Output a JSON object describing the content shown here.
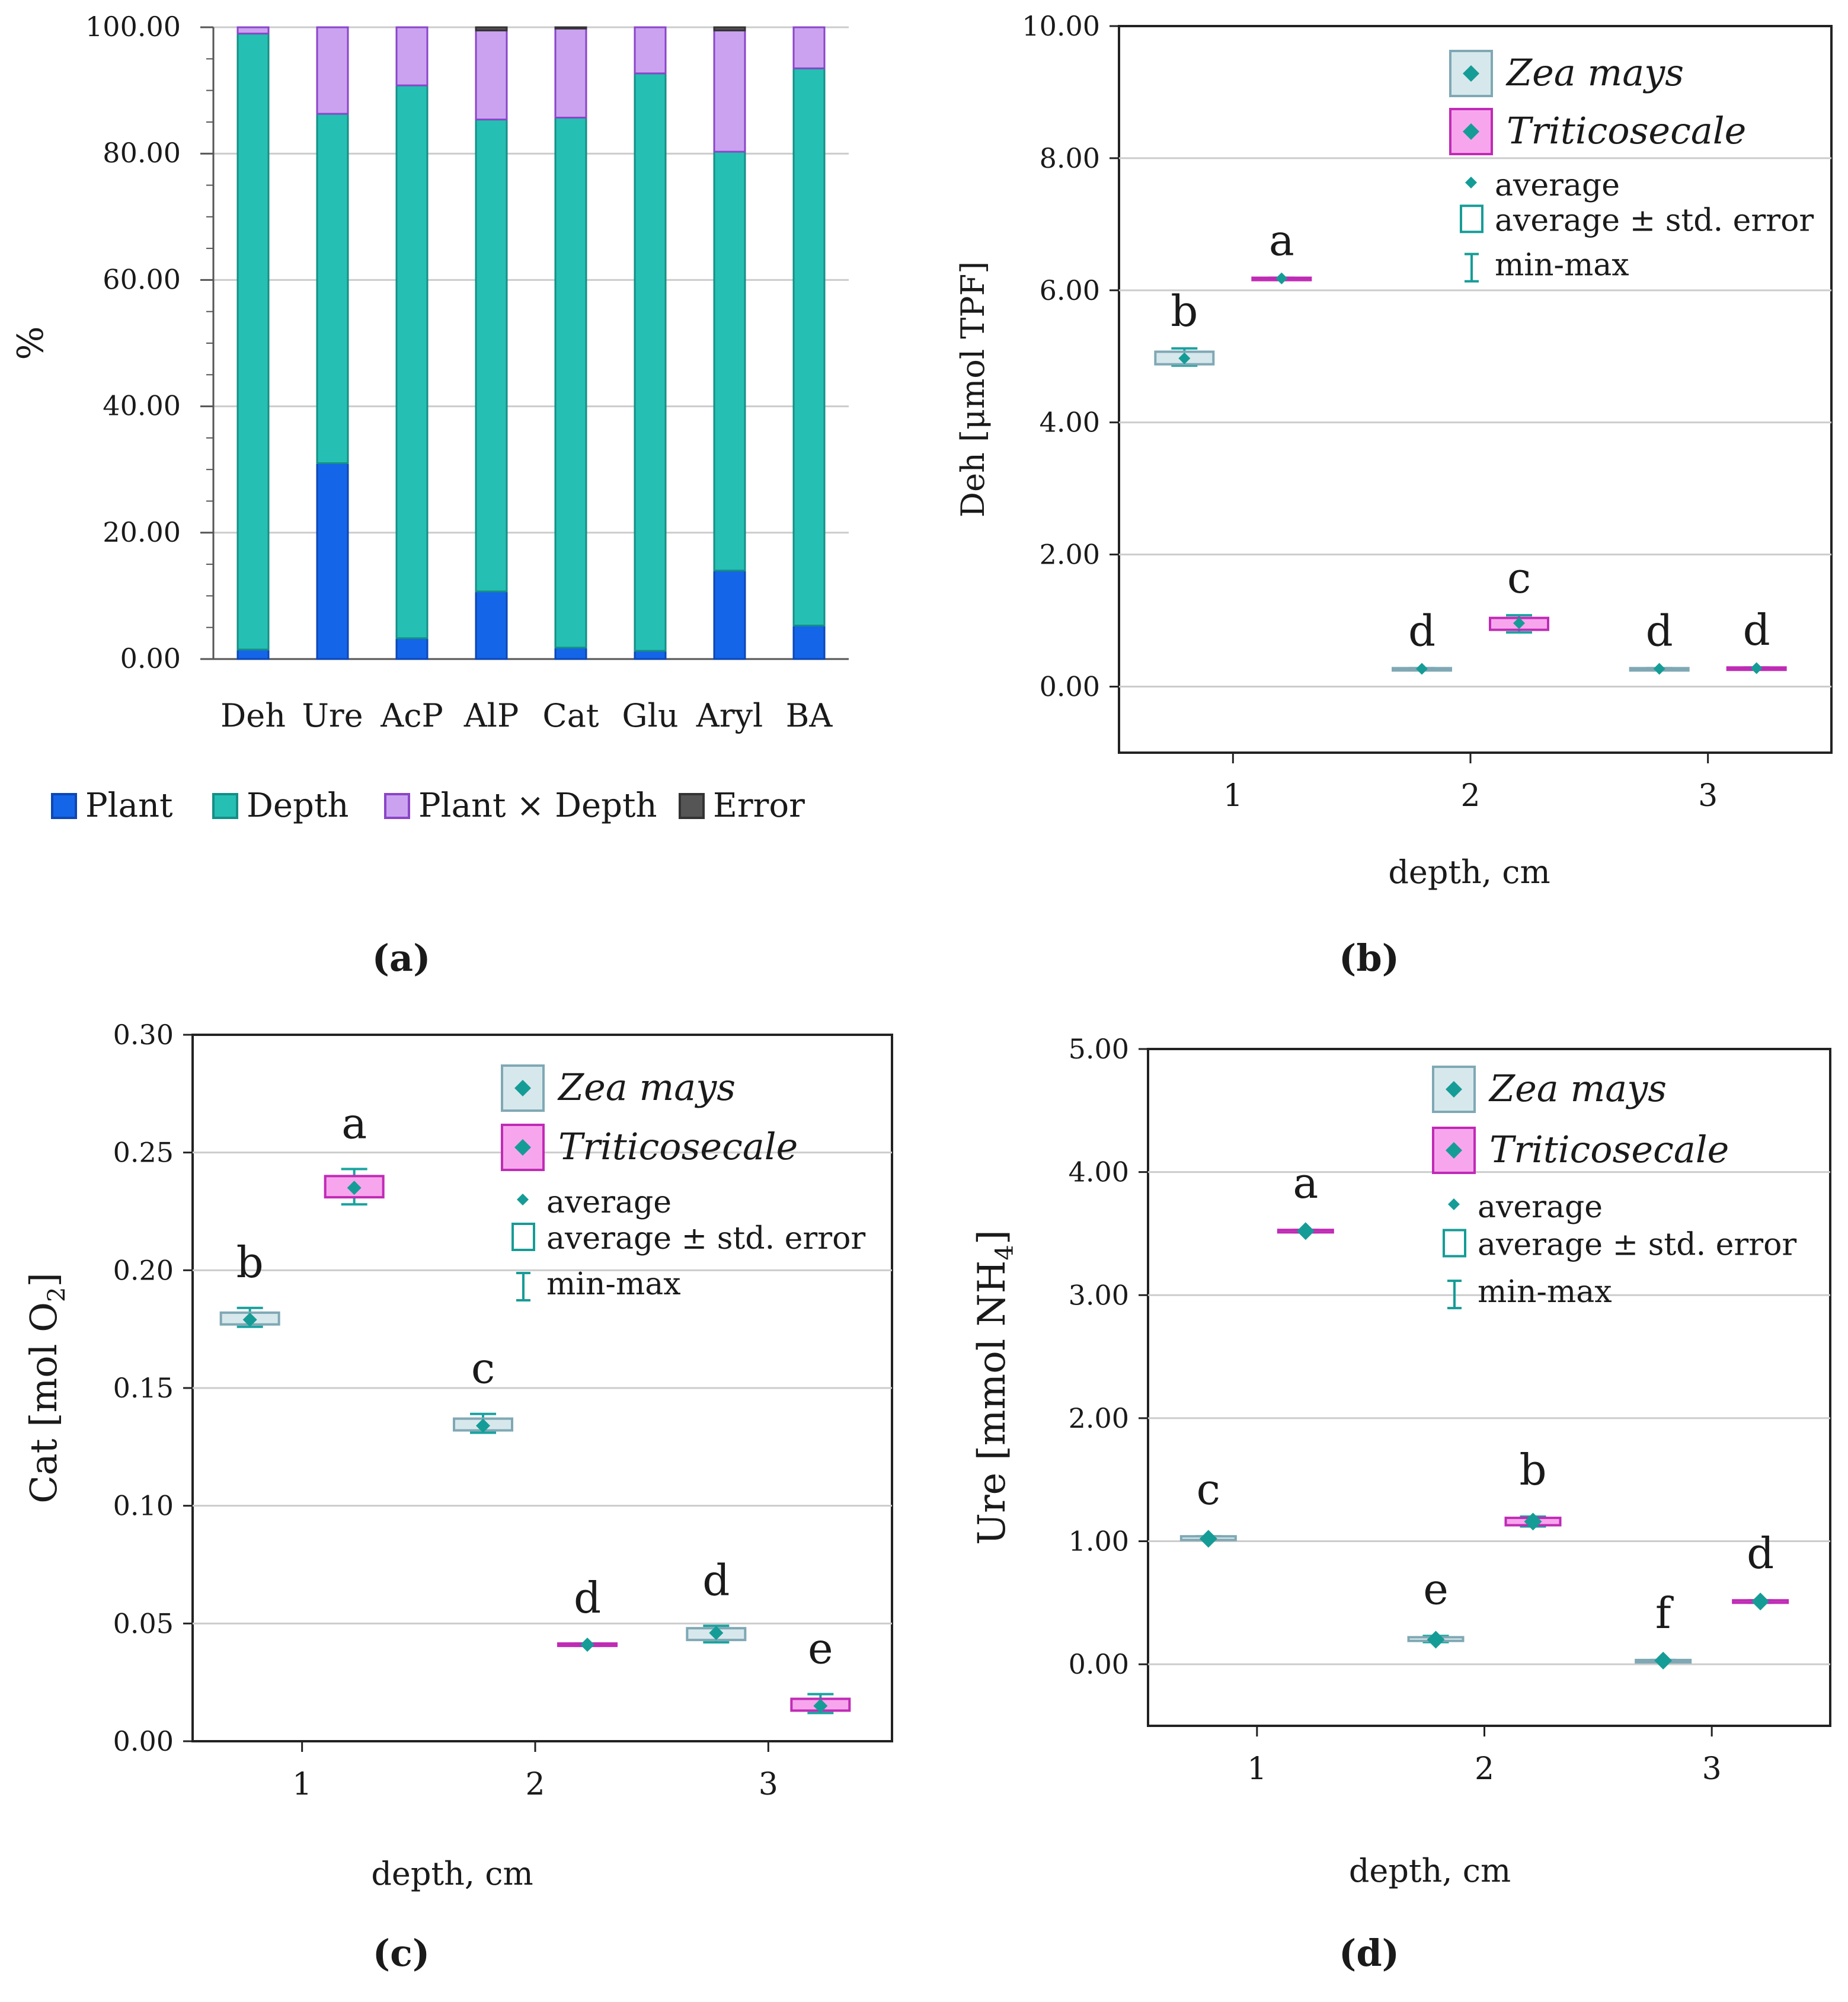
{
  "colors": {
    "plant": "#1565e8",
    "depth": "#26bfb3",
    "interaction": "#cba2f0",
    "error": "#555555",
    "zea_fill": "#d7e8ec",
    "zea_stroke": "#7fa8b4",
    "trit_fill": "#f7a6ee",
    "trit_stroke": "#c02bb5",
    "marker": "#169c96",
    "whisker": "#1aa3a0",
    "grid": "#cccccc"
  },
  "chart_data": [
    {
      "id": "a",
      "type": "bar",
      "stacked": true,
      "caption": "a",
      "ylabel": "%",
      "ylim": [
        0,
        100
      ],
      "yticks": [
        "0.00",
        "20.00",
        "40.00",
        "60.00",
        "80.00",
        "100.00"
      ],
      "categories": [
        "Deh",
        "Ure",
        "AcP",
        "AlP",
        "Cat",
        "Glu",
        "Aryl",
        "BA"
      ],
      "series": [
        {
          "name": "Plant",
          "key": "plant",
          "values": [
            1.5,
            31,
            3.3,
            10.7,
            1.8,
            1.3,
            14,
            5.3
          ]
        },
        {
          "name": "Depth",
          "key": "depth",
          "values": [
            97.5,
            55.3,
            87.5,
            74.7,
            83.9,
            91.4,
            66.3,
            88.2
          ]
        },
        {
          "name": "Plant × Depth",
          "key": "interaction",
          "values": [
            1,
            13.7,
            9.2,
            14.1,
            14.1,
            7.3,
            19.2,
            6.5
          ]
        },
        {
          "name": "Error",
          "key": "error",
          "values": [
            0,
            0,
            0,
            0.5,
            0.2,
            0,
            0.5,
            0
          ]
        }
      ],
      "legend_position": "bottom"
    },
    {
      "id": "b",
      "type": "box",
      "caption": "b",
      "xlabel": "depth, cm",
      "ylabel": "Deh [μmol TPF]",
      "ylim": [
        -1,
        10
      ],
      "yticks": [
        "0.00",
        "2.00",
        "4.00",
        "6.00",
        "8.00",
        "10.00"
      ],
      "xticks": [
        "1",
        "2",
        "3"
      ],
      "legend": {
        "zea": "Zea mays",
        "trit": "Triticosecale",
        "avg": "average",
        "se": "average ± std. error",
        "mm": "min-max"
      },
      "points": [
        {
          "depth": 1,
          "plant": "zea",
          "mean": 4.97,
          "se_lo": 4.88,
          "se_hi": 5.07,
          "min": 4.86,
          "max": 5.12,
          "label": "b"
        },
        {
          "depth": 1,
          "plant": "trit",
          "mean": 6.18,
          "se_lo": 6.17,
          "se_hi": 6.19,
          "min": 6.17,
          "max": 6.19,
          "label": "a"
        },
        {
          "depth": 2,
          "plant": "zea",
          "mean": 0.27,
          "se_lo": 0.26,
          "se_hi": 0.28,
          "min": 0.26,
          "max": 0.28,
          "label": "d"
        },
        {
          "depth": 2,
          "plant": "trit",
          "mean": 0.96,
          "se_lo": 0.86,
          "se_hi": 1.04,
          "min": 0.82,
          "max": 1.08,
          "label": "c"
        },
        {
          "depth": 3,
          "plant": "zea",
          "mean": 0.27,
          "se_lo": 0.26,
          "se_hi": 0.28,
          "min": 0.26,
          "max": 0.28,
          "label": "d"
        },
        {
          "depth": 3,
          "plant": "trit",
          "mean": 0.28,
          "se_lo": 0.27,
          "se_hi": 0.29,
          "min": 0.27,
          "max": 0.29,
          "label": "d"
        }
      ]
    },
    {
      "id": "c",
      "type": "box",
      "caption": "c",
      "xlabel": "depth, cm",
      "ylabel": "Cat [mol O",
      "ylabel_sub": "2",
      "ylabel_end": "]",
      "ylim": [
        0,
        0.3
      ],
      "yticks": [
        "0.00",
        "0.05",
        "0.10",
        "0.15",
        "0.20",
        "0.25",
        "0.30"
      ],
      "xticks": [
        "1",
        "2",
        "3"
      ],
      "legend": {
        "zea": "Zea mays",
        "trit": "Triticosecale",
        "avg": "average",
        "se": "average ± std. error",
        "mm": "min-max"
      },
      "points": [
        {
          "depth": 1,
          "plant": "zea",
          "mean": 0.179,
          "se_lo": 0.177,
          "se_hi": 0.182,
          "min": 0.176,
          "max": 0.184,
          "label": "b"
        },
        {
          "depth": 1,
          "plant": "trit",
          "mean": 0.235,
          "se_lo": 0.231,
          "se_hi": 0.24,
          "min": 0.228,
          "max": 0.243,
          "label": "a"
        },
        {
          "depth": 2,
          "plant": "zea",
          "mean": 0.134,
          "se_lo": 0.132,
          "se_hi": 0.137,
          "min": 0.131,
          "max": 0.139,
          "label": "c"
        },
        {
          "depth": 2,
          "plant": "trit",
          "mean": 0.041,
          "se_lo": 0.0405,
          "se_hi": 0.0415,
          "min": 0.0405,
          "max": 0.0415,
          "label": "d"
        },
        {
          "depth": 3,
          "plant": "zea",
          "mean": 0.046,
          "se_lo": 0.043,
          "se_hi": 0.048,
          "min": 0.042,
          "max": 0.049,
          "label": "d"
        },
        {
          "depth": 3,
          "plant": "trit",
          "mean": 0.015,
          "se_lo": 0.013,
          "se_hi": 0.018,
          "min": 0.012,
          "max": 0.02,
          "label": "e"
        }
      ]
    },
    {
      "id": "d",
      "type": "box",
      "caption": "d",
      "xlabel": "depth, cm",
      "ylabel": "Ure [mmol NH",
      "ylabel_sub": "4",
      "ylabel_end": "]",
      "ylim": [
        -0.5,
        5
      ],
      "yticks": [
        "0.00",
        "1.00",
        "2.00",
        "3.00",
        "4.00",
        "5.00"
      ],
      "xticks": [
        "1",
        "2",
        "3"
      ],
      "legend": {
        "zea": "Zea mays",
        "trit": "Triticosecale",
        "avg": "average",
        "se": "average ± std. error",
        "mm": "min-max"
      },
      "points": [
        {
          "depth": 1,
          "plant": "zea",
          "mean": 1.02,
          "se_lo": 1.01,
          "se_hi": 1.04,
          "min": 1.01,
          "max": 1.04,
          "label": "c"
        },
        {
          "depth": 1,
          "plant": "trit",
          "mean": 3.52,
          "se_lo": 3.51,
          "se_hi": 3.53,
          "min": 3.51,
          "max": 3.53,
          "label": "a"
        },
        {
          "depth": 2,
          "plant": "zea",
          "mean": 0.2,
          "se_lo": 0.19,
          "se_hi": 0.22,
          "min": 0.18,
          "max": 0.23,
          "label": "e"
        },
        {
          "depth": 2,
          "plant": "trit",
          "mean": 1.16,
          "se_lo": 1.13,
          "se_hi": 1.19,
          "min": 1.12,
          "max": 1.2,
          "label": "b"
        },
        {
          "depth": 3,
          "plant": "zea",
          "mean": 0.03,
          "se_lo": 0.025,
          "se_hi": 0.035,
          "min": 0.025,
          "max": 0.035,
          "label": "f"
        },
        {
          "depth": 3,
          "plant": "trit",
          "mean": 0.51,
          "se_lo": 0.5,
          "se_hi": 0.52,
          "min": 0.5,
          "max": 0.52,
          "label": "d"
        }
      ]
    }
  ]
}
